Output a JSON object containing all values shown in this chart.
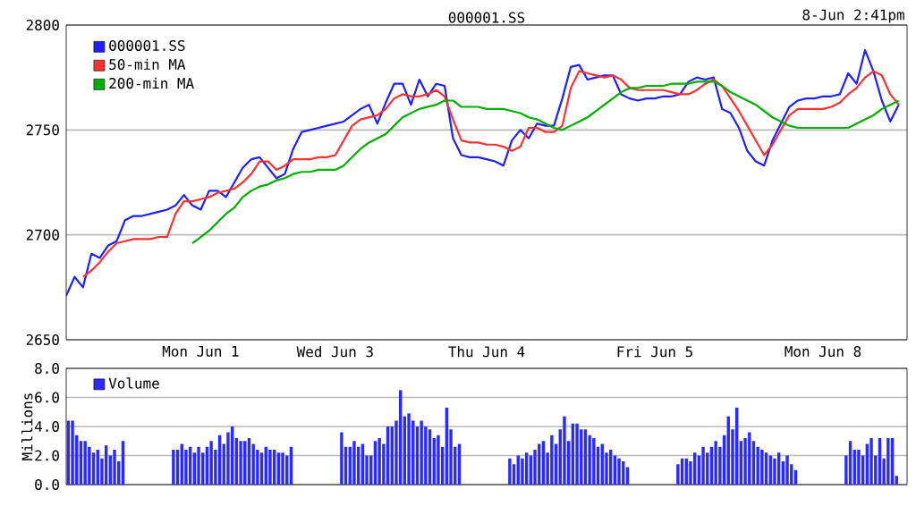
{
  "chart_data": [
    {
      "type": "line",
      "title": "000001.SS",
      "subtitle": "8-Jun 2:41pm",
      "categories": [
        null,
        null,
        null,
        null,
        null,
        null,
        null,
        null,
        null,
        null,
        null,
        null,
        null,
        null,
        null,
        null,
        "Mon Jun 1",
        null,
        null,
        null,
        null,
        null,
        null,
        null,
        null,
        null,
        null,
        null,
        null,
        null,
        null,
        null,
        "Wed Jun 3",
        null,
        null,
        null,
        null,
        null,
        null,
        null,
        null,
        null,
        null,
        null,
        null,
        null,
        null,
        null,
        null,
        null,
        "Thu Jun 4",
        null,
        null,
        null,
        null,
        null,
        null,
        null,
        null,
        null,
        null,
        null,
        null,
        null,
        null,
        null,
        null,
        null,
        null,
        null,
        "Fri Jun 5",
        null,
        null,
        null,
        null,
        null,
        null,
        null,
        null,
        null,
        null,
        null,
        null,
        null,
        null,
        null,
        null,
        null,
        null,
        null,
        "Mon Jun 8",
        null,
        null,
        null,
        null,
        null,
        null,
        null,
        null,
        null,
        null
      ],
      "ylim": [
        2650,
        2800
      ],
      "yticks": [
        2650,
        2700,
        2750,
        2800
      ],
      "grid": "y",
      "legend": "top left",
      "series": [
        {
          "name": "000001.SS",
          "color": "#2020ff",
          "values": [
            2671,
            2680,
            2675,
            2691,
            2689,
            2695,
            2697,
            2707,
            2709,
            2709,
            2710,
            2711,
            2712,
            2714,
            2719,
            2714,
            2712,
            2721,
            2721,
            2718,
            2725,
            2732,
            2736,
            2737,
            2732,
            2727,
            2729,
            2741,
            2749,
            2750,
            2751,
            2752,
            2753,
            2754,
            2757,
            2760,
            2762,
            2753,
            2763,
            2772,
            2772,
            2762,
            2774,
            2766,
            2772,
            2771,
            2746,
            2738,
            2737,
            2737,
            2736,
            2735,
            2733,
            2745,
            2750,
            2746,
            2753,
            2752,
            2752,
            2765,
            2780,
            2781,
            2774,
            2775,
            2776,
            2776,
            2767,
            2765,
            2764,
            2765,
            2765,
            2766,
            2766,
            2767,
            2773,
            2775,
            2774,
            2775,
            2760,
            2758,
            2751,
            2740,
            2735,
            2733,
            2745,
            2753,
            2761,
            2764,
            2765,
            2765,
            2766,
            2766,
            2767,
            2777,
            2772,
            2788,
            2778,
            2764,
            2754,
            2762,
            null
          ]
        },
        {
          "name": "50-min MA",
          "color": "#ff3030",
          "values": [
            null,
            null,
            2680,
            2683,
            2687,
            2692,
            2696,
            2697,
            2698,
            2698,
            2698,
            2699,
            2699,
            2710,
            2716,
            2716,
            2717,
            2718,
            2720,
            2721,
            2722,
            2725,
            2729,
            2735,
            2735,
            2731,
            2733,
            2736,
            2736,
            2736,
            2737,
            2737,
            2738,
            2745,
            2752,
            2755,
            2756,
            2757,
            2760,
            2765,
            2767,
            2766,
            2766,
            2767,
            2769,
            2766,
            2755,
            2745,
            2744,
            2744,
            2743,
            2743,
            2742,
            2740,
            2742,
            2751,
            2751,
            2749,
            2749,
            2752,
            2770,
            2778,
            2777,
            2776,
            2775,
            2776,
            2774,
            2770,
            2769,
            2769,
            2769,
            2769,
            2768,
            2767,
            2767,
            2769,
            2772,
            2774,
            2771,
            2765,
            2759,
            2752,
            2745,
            2738,
            2743,
            2750,
            2757,
            2760,
            2760,
            2760,
            2760,
            2761,
            2763,
            2767,
            2770,
            2775,
            2778,
            2776,
            2767,
            2762,
            null
          ]
        },
        {
          "name": "200-min MA",
          "color": "#00b000",
          "values": [
            null,
            null,
            null,
            null,
            null,
            null,
            null,
            null,
            null,
            null,
            null,
            null,
            null,
            null,
            null,
            2696,
            2699,
            2702,
            2706,
            2710,
            2713,
            2718,
            2721,
            2723,
            2724,
            2726,
            2727,
            2729,
            2730,
            2730,
            2731,
            2731,
            2731,
            2733,
            2737,
            2741,
            2744,
            2746,
            2748,
            2752,
            2756,
            2758,
            2760,
            2761,
            2762,
            2764,
            2764,
            2761,
            2761,
            2761,
            2760,
            2760,
            2760,
            2759,
            2758,
            2756,
            2755,
            2753,
            2751,
            2750,
            2752,
            2754,
            2756,
            2759,
            2762,
            2765,
            2768,
            2770,
            2770,
            2771,
            2771,
            2771,
            2772,
            2772,
            2772,
            2773,
            2773,
            2773,
            2771,
            2768,
            2766,
            2764,
            2762,
            2759,
            2756,
            2754,
            2752,
            2751,
            2751,
            2751,
            2751,
            2751,
            2751,
            2751,
            2753,
            2755,
            2757,
            2760,
            2762,
            2764,
            null
          ]
        }
      ]
    },
    {
      "type": "bar",
      "ylabel": "Millions",
      "ylim": [
        0,
        8
      ],
      "categories": [
        null,
        null,
        null,
        null,
        null,
        null,
        null,
        null,
        null,
        null,
        null,
        null,
        null,
        null,
        null,
        null,
        null,
        null,
        null,
        null,
        null,
        null,
        null,
        null,
        null,
        null,
        null,
        null,
        null,
        null,
        null,
        null,
        null,
        null,
        null,
        null,
        null,
        null,
        null,
        null,
        null,
        null,
        null,
        null,
        null,
        null,
        null,
        null,
        null,
        null,
        null,
        null,
        null,
        null,
        null,
        null,
        null,
        null,
        null,
        null,
        null,
        null,
        null,
        null,
        null,
        null,
        null,
        null,
        null,
        null,
        null,
        null,
        null,
        null,
        null,
        null,
        null,
        null,
        null,
        null,
        null,
        null,
        null,
        null,
        null,
        null,
        null,
        null,
        null,
        null,
        null,
        null,
        null,
        null,
        null,
        null,
        null,
        null,
        null,
        null,
        null,
        null,
        null,
        null,
        null,
        null,
        null,
        null,
        null,
        null,
        null,
        null,
        null,
        null,
        null,
        null,
        null,
        null,
        null,
        null,
        null,
        null,
        null,
        null,
        null,
        null,
        null,
        null,
        null,
        null,
        null,
        null,
        null,
        null,
        null,
        null,
        null,
        null,
        null,
        null,
        null,
        null,
        null,
        null,
        null,
        null,
        null,
        null,
        null,
        null,
        null,
        null,
        null,
        null,
        null,
        null,
        null,
        null,
        null,
        null,
        null,
        null,
        null,
        null,
        null,
        null,
        null,
        null,
        null,
        null,
        null,
        null,
        null,
        null,
        null,
        null,
        null,
        null,
        null,
        null,
        null,
        null,
        null,
        null,
        null,
        null,
        null,
        null,
        null,
        null,
        null,
        null,
        null,
        null,
        null,
        null,
        null,
        null,
        null,
        null
      ],
      "yticks": [
        {
          "value": 0,
          "label": "0.0"
        },
        {
          "value": 2,
          "label": "2.0"
        },
        {
          "value": 4,
          "label": "4.0"
        },
        {
          "value": 6,
          "label": "6.0"
        },
        {
          "value": 8,
          "label": "8.0"
        }
      ],
      "tick_labels": "y",
      "grid": "y",
      "legend": "top left",
      "series": [
        {
          "name": "Volume",
          "color": "#2a2aff",
          "values": [
            4.4,
            4.4,
            3.4,
            3.0,
            3.0,
            2.6,
            2.2,
            2.4,
            1.8,
            2.7,
            2.0,
            2.4,
            1.6,
            3.0,
            null,
            null,
            null,
            null,
            null,
            null,
            null,
            null,
            null,
            null,
            null,
            2.4,
            2.4,
            2.8,
            2.4,
            2.6,
            2.2,
            2.6,
            2.2,
            2.6,
            3.0,
            2.4,
            3.4,
            2.8,
            3.6,
            4.0,
            3.2,
            3.0,
            3.0,
            3.2,
            2.8,
            2.4,
            2.2,
            2.6,
            2.4,
            2.4,
            2.2,
            2.2,
            2.0,
            2.6,
            null,
            null,
            null,
            null,
            null,
            null,
            null,
            null,
            null,
            null,
            null,
            3.6,
            2.6,
            2.6,
            3.0,
            2.6,
            2.8,
            2.0,
            2.0,
            3.0,
            3.2,
            2.8,
            4.0,
            4.0,
            4.4,
            6.5,
            4.7,
            4.9,
            4.4,
            4.0,
            4.4,
            4.0,
            3.8,
            3.2,
            3.4,
            2.6,
            5.3,
            3.8,
            2.6,
            2.8,
            null,
            null,
            null,
            null,
            null,
            null,
            null,
            null,
            null,
            null,
            null,
            1.8,
            1.4,
            2.0,
            1.8,
            2.2,
            2.0,
            2.4,
            2.8,
            3.0,
            2.2,
            3.4,
            2.8,
            3.8,
            4.7,
            3.0,
            4.2,
            4.2,
            3.8,
            3.8,
            3.4,
            3.2,
            2.6,
            2.8,
            2.2,
            2.4,
            2.0,
            1.8,
            1.6,
            1.2,
            null,
            null,
            null,
            null,
            null,
            null,
            null,
            null,
            null,
            null,
            null,
            1.4,
            1.8,
            1.8,
            1.6,
            2.2,
            2.0,
            2.6,
            2.2,
            2.6,
            3.0,
            2.6,
            3.4,
            4.7,
            3.8,
            5.3,
            3.0,
            3.2,
            3.6,
            3.0,
            2.6,
            2.4,
            2.2,
            2.0,
            1.8,
            2.2,
            1.6,
            2.0,
            1.4,
            1.0,
            null,
            null,
            null,
            null,
            null,
            null,
            null,
            null,
            null,
            null,
            null,
            2.0,
            3.0,
            2.4,
            2.4,
            2.0,
            2.8,
            3.2,
            2.0,
            3.2,
            1.8,
            3.2,
            3.2,
            0.6,
            null,
            null
          ]
        }
      ]
    }
  ]
}
